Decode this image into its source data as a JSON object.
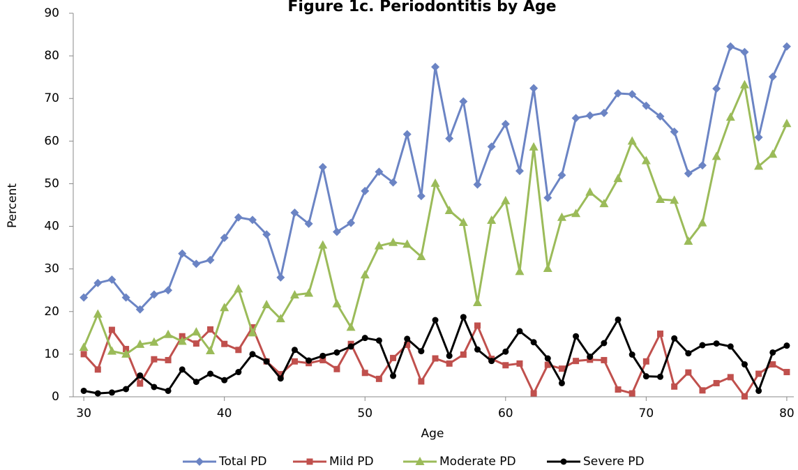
{
  "chart_data": {
    "type": "line",
    "title": "Figure 1c. Periodontitis by Age",
    "x_label": "Age",
    "y_label": "Percent",
    "x": [
      30,
      31,
      32,
      33,
      34,
      35,
      36,
      37,
      38,
      39,
      40,
      41,
      42,
      43,
      44,
      45,
      46,
      47,
      48,
      49,
      50,
      51,
      52,
      53,
      54,
      55,
      56,
      57,
      58,
      59,
      60,
      61,
      62,
      63,
      64,
      65,
      66,
      67,
      68,
      69,
      70,
      71,
      72,
      73,
      74,
      75,
      76,
      77,
      78,
      79,
      80
    ],
    "xlim": [
      29.25,
      80.5
    ],
    "xticks": [
      30,
      40,
      50,
      60,
      70,
      80
    ],
    "ylim": [
      0,
      90
    ],
    "yticks": [
      0,
      10,
      20,
      30,
      40,
      50,
      60,
      70,
      80,
      90
    ],
    "grid": false,
    "legend": "bottom",
    "series": [
      {
        "name": "Total PD",
        "color": "#6b84c4",
        "marker": "diamond",
        "values": [
          23.3,
          26.7,
          27.5,
          23.3,
          20.5,
          24,
          25,
          33.6,
          31.2,
          32.1,
          37.3,
          42.1,
          41.5,
          38.1,
          28,
          43.2,
          40.6,
          53.9,
          38.7,
          40.8,
          48.3,
          52.8,
          50.3,
          61.6,
          47.1,
          77.4,
          60.6,
          69.3,
          49.8,
          58.7,
          64,
          53,
          72.4,
          46.7,
          52,
          65.4,
          66,
          66.6,
          71.2,
          71,
          68.3,
          65.8,
          62.2,
          52.4,
          54.3,
          72.3,
          82.2,
          80.9,
          60.9,
          75.1,
          82.2
        ]
      },
      {
        "name": "Mild PD",
        "color": "#c0504d",
        "marker": "square",
        "values": [
          10,
          6.4,
          15.7,
          11.2,
          3.1,
          8.8,
          8.6,
          14.2,
          12.5,
          15.8,
          12.4,
          11,
          16.3,
          8.3,
          5.3,
          8.3,
          7.9,
          8.6,
          6.5,
          12.4,
          5.6,
          4.2,
          9.1,
          12.2,
          3.6,
          9,
          7.8,
          9.9,
          16.7,
          8.9,
          7.4,
          7.8,
          0.8,
          7.5,
          6.6,
          8.4,
          8.7,
          8.6,
          1.7,
          0.8,
          8.3,
          14.8,
          2.4,
          5.7,
          1.5,
          3.2,
          4.6,
          0.1,
          5.4,
          7.6,
          5.8
        ]
      },
      {
        "name": "Moderate PD",
        "color": "#9bbb59",
        "marker": "triangle",
        "values": [
          11.6,
          19.4,
          10.7,
          10,
          12.3,
          12.8,
          14.6,
          13,
          15.2,
          10.8,
          20.9,
          25.3,
          15,
          21.6,
          18.3,
          23.9,
          24.3,
          35.6,
          21.8,
          16.3,
          28.6,
          35.4,
          36.2,
          35.8,
          32.9,
          50.1,
          43.7,
          40.9,
          22.1,
          41.4,
          46,
          29.4,
          58.6,
          30.1,
          42.1,
          43,
          48,
          45.3,
          51.2,
          60,
          55.4,
          46.3,
          46.1,
          36.5,
          40.8,
          56.4,
          65.6,
          73.2,
          54.1,
          56.9,
          64.1
        ]
      },
      {
        "name": "Severe PD",
        "color": "#000000",
        "marker": "circle",
        "values": [
          1.4,
          0.8,
          1,
          1.8,
          5,
          2.3,
          1.4,
          6.4,
          3.5,
          5.4,
          3.9,
          5.8,
          10,
          8.3,
          4.3,
          11,
          8.5,
          9.6,
          10.4,
          11.8,
          13.8,
          13.2,
          4.9,
          13.6,
          10.7,
          18,
          9.6,
          18.7,
          11.1,
          8.4,
          10.6,
          15.4,
          12.8,
          9,
          3.2,
          14.2,
          9.4,
          12.6,
          18.1,
          9.9,
          4.8,
          4.7,
          13.7,
          10.2,
          12.1,
          12.5,
          11.8,
          7.6,
          1.4,
          10.4,
          12
        ]
      }
    ]
  }
}
